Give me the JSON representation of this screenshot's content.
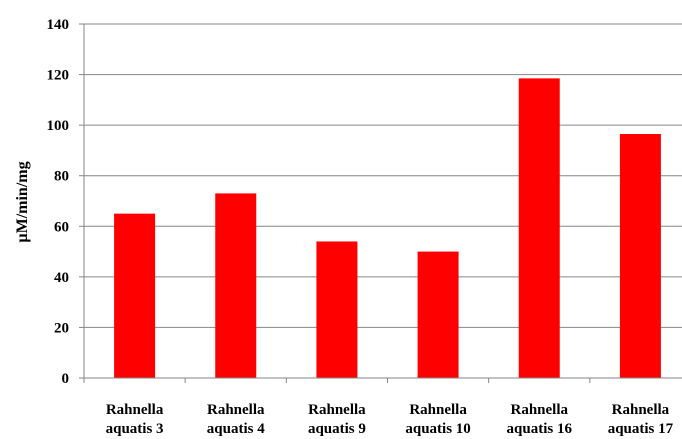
{
  "chart_data": {
    "type": "bar",
    "title": "",
    "xlabel": "",
    "ylabel": "µM/min/mg",
    "categories": [
      [
        "Rahnella",
        "aquatis 3"
      ],
      [
        "Rahnella",
        "aquatis 4"
      ],
      [
        "Rahnella",
        "aquatis 9"
      ],
      [
        "Rahnella",
        "aquatis 10"
      ],
      [
        "Rahnella",
        "aquatis 16"
      ],
      [
        "Rahnella",
        "aquatis 17"
      ]
    ],
    "values": [
      65,
      73,
      54,
      50,
      118.5,
      96.5
    ],
    "ylim": [
      0,
      140
    ],
    "yticks": [
      0,
      20,
      40,
      60,
      80,
      100,
      120,
      140
    ],
    "grid": true,
    "legend": "none",
    "colors": {
      "bar": "#ff0000",
      "grid": "#868686",
      "axis": "#868686"
    }
  }
}
